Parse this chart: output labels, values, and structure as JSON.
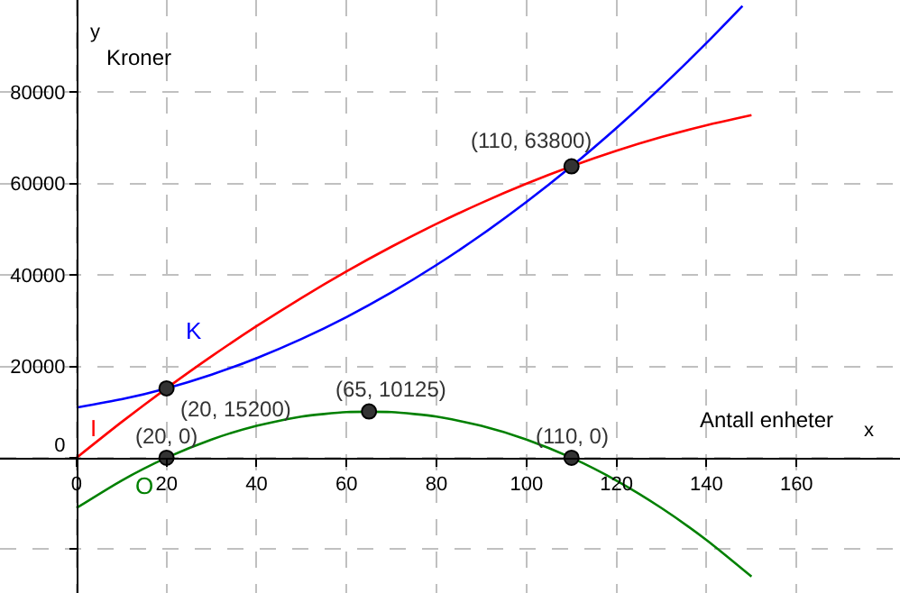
{
  "chart_data": {
    "type": "line",
    "xlabel": "Antall enheter",
    "ylabel": "Kroner",
    "annotations": [
      "x",
      "y",
      {
        "text": "(20, 15200)",
        "x": 20,
        "y": 15200
      },
      {
        "text": "(20, 0)",
        "x": 20,
        "y": 0
      },
      {
        "text": "(65, 10125)",
        "x": 65,
        "y": 10125
      },
      {
        "text": "(110, 63800)",
        "x": 110,
        "y": 63800
      },
      {
        "text": "(110, 0)",
        "x": 110,
        "y": 0
      }
    ],
    "series": [
      {
        "name": "K",
        "color": "#0000ff",
        "x": [
          0,
          10,
          20,
          30,
          40,
          50,
          60,
          70,
          80,
          90,
          100,
          110,
          120,
          130,
          140,
          148
        ],
        "values": [
          11000,
          12800,
          15200,
          18200,
          21800,
          26000,
          30800,
          36200,
          42200,
          48800,
          56000,
          63800,
          72200,
          81200,
          90800,
          98900
        ]
      },
      {
        "name": "I",
        "color": "#ff0000",
        "x": [
          0,
          10,
          20,
          30,
          40,
          50,
          60,
          70,
          80,
          90,
          100,
          110,
          120,
          130,
          140,
          150
        ],
        "values": [
          0,
          7800,
          15200,
          22200,
          28800,
          35000,
          40800,
          46200,
          51200,
          55800,
          60000,
          63800,
          67200,
          70200,
          72800,
          75000
        ]
      },
      {
        "name": "O",
        "color": "#008000",
        "x": [
          0,
          10,
          20,
          30,
          40,
          50,
          60,
          70,
          80,
          90,
          100,
          110,
          120,
          130,
          140,
          150
        ],
        "values": [
          -11000,
          -5000,
          0,
          4000,
          7000,
          9000,
          10000,
          10000,
          9000,
          7000,
          4000,
          0,
          -5000,
          -11000,
          -18000,
          -26000
        ]
      },
      {
        "type": "scatter",
        "color": "#333333",
        "marker": "circle",
        "x": [
          20,
          20,
          65,
          110,
          110
        ],
        "values": [
          15200,
          0,
          10125,
          63800,
          0
        ]
      }
    ],
    "xlim": [
      -17,
      183
    ],
    "xticks": [
      0,
      20,
      40,
      60,
      80,
      100,
      120,
      140,
      160
    ],
    "ylim": [
      -29600,
      100200
    ],
    "yticks": [
      {
        "value": -20000,
        "label": null
      },
      0,
      20000,
      40000,
      60000,
      80000
    ],
    "grid": true,
    "legend": false,
    "marker": "none",
    "line_style": "solid"
  }
}
